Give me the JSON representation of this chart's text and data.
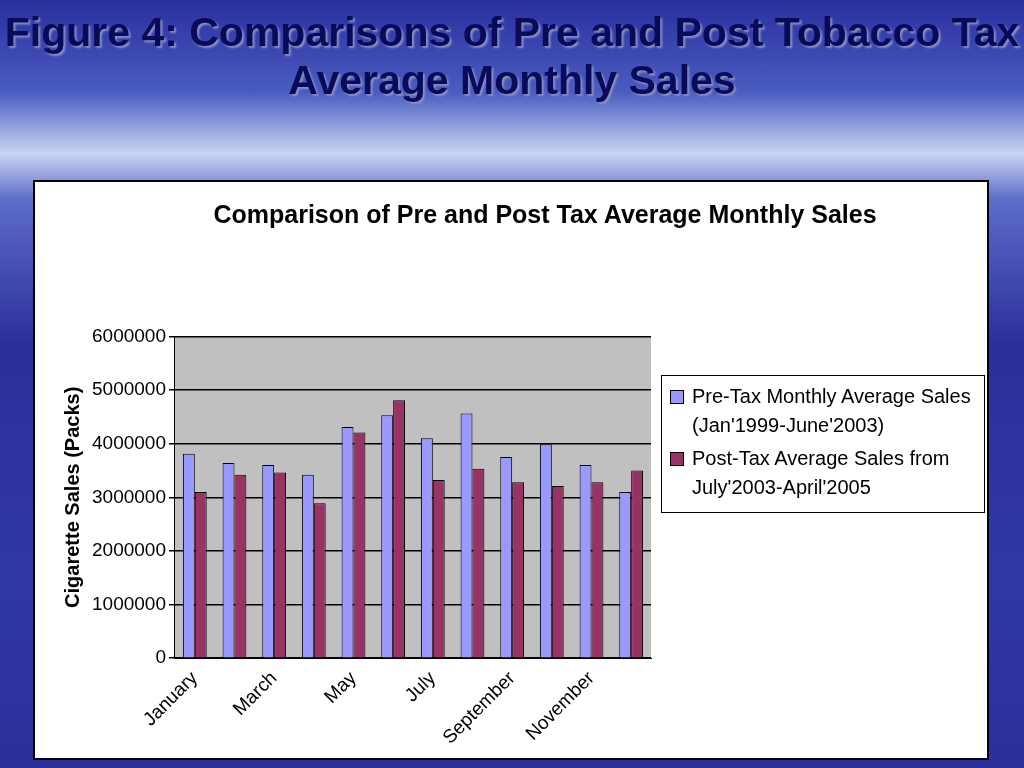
{
  "chart_data": {
    "type": "bar",
    "title": "Figure 4: Comparisons of Pre and Post Tobacco Tax Average Monthly Sales",
    "subtitle": "Comparison of Pre and Post Tax Average Monthly Sales",
    "ylabel": "Cigarette Sales (Packs)",
    "categories": [
      "January",
      null,
      "March",
      null,
      "May",
      null,
      "July",
      null,
      "September",
      null,
      "November",
      null
    ],
    "series": [
      {
        "name": "Pre-Tax Monthly Average Sales (Jan'1999-June'2003)",
        "color": "#9999ff",
        "values": [
          3810000,
          3640000,
          3600000,
          3420000,
          4310000,
          4530000,
          4100000,
          4560000,
          3750000,
          3990000,
          3600000,
          3100000
        ]
      },
      {
        "name": "Post-Tax Average Sales from July'2003-April'2005",
        "color": "#993366",
        "values": [
          3100000,
          3420000,
          3460000,
          2890000,
          4210000,
          4810000,
          3320000,
          3530000,
          3280000,
          3210000,
          3280000,
          3500000
        ]
      }
    ],
    "ylim": [
      0,
      6000000
    ],
    "yticks": [
      0,
      1000000,
      2000000,
      3000000,
      4000000,
      5000000,
      6000000
    ],
    "grid": "y",
    "legend": "right"
  }
}
